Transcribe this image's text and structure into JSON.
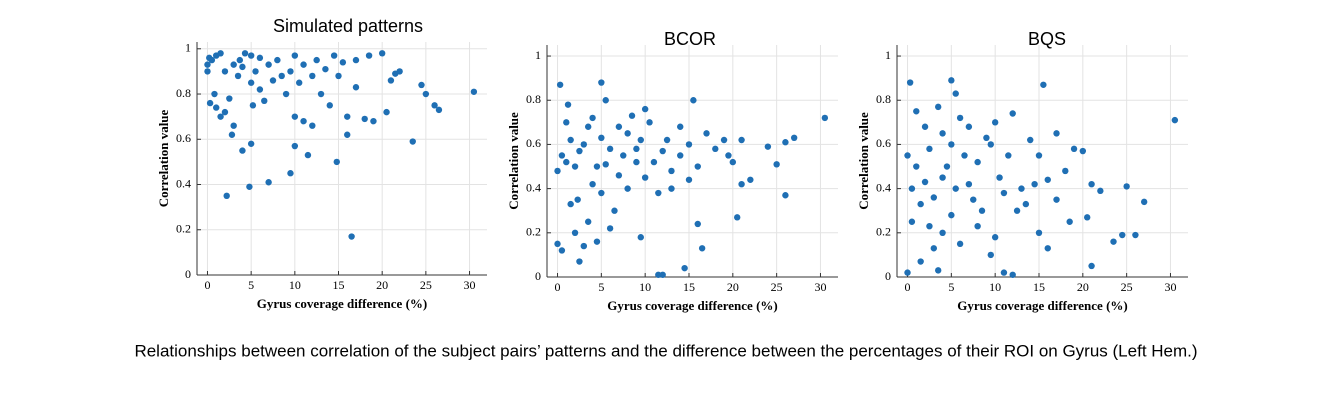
{
  "chart_data": [
    {
      "type": "scatter",
      "title": "Simulated patterns",
      "xlabel": "Gyrus coverage difference (%)",
      "ylabel": "Correlation value",
      "color": "#1f6fb4",
      "grid": true,
      "xlim": [
        -1.2,
        32
      ],
      "ylim": [
        0,
        1.03
      ],
      "xticks": [
        0,
        5,
        10,
        15,
        20,
        25,
        30
      ],
      "yticks": [
        0,
        0.2,
        0.4,
        0.6,
        0.8,
        1
      ],
      "x": [
        0,
        0,
        0.2,
        0.5,
        0.3,
        0.8,
        1,
        1,
        1.5,
        1.5,
        2,
        2,
        2.2,
        2.5,
        2.8,
        3,
        3,
        3.5,
        3.7,
        4,
        4,
        4.3,
        4.8,
        5,
        5,
        5,
        5.2,
        5.5,
        6,
        6,
        6.5,
        7,
        7,
        7.5,
        8,
        8.5,
        9,
        9.5,
        9.5,
        10,
        10,
        10,
        10.5,
        11,
        11,
        11.5,
        12,
        12,
        12.5,
        13,
        13.5,
        14,
        14.5,
        14.8,
        15,
        15.5,
        16,
        16,
        16.5,
        17,
        17,
        18,
        18.5,
        19,
        20,
        20.5,
        21,
        21.5,
        22,
        23.5,
        24.5,
        25,
        26,
        26.5,
        30.5
      ],
      "values": [
        0.93,
        0.9,
        0.96,
        0.95,
        0.76,
        0.8,
        0.74,
        0.97,
        0.98,
        0.7,
        0.72,
        0.9,
        0.35,
        0.78,
        0.62,
        0.66,
        0.93,
        0.88,
        0.95,
        0.55,
        0.92,
        0.98,
        0.39,
        0.58,
        0.85,
        0.97,
        0.75,
        0.9,
        0.96,
        0.82,
        0.77,
        0.41,
        0.93,
        0.86,
        0.95,
        0.88,
        0.8,
        0.45,
        0.9,
        0.57,
        0.7,
        0.97,
        0.85,
        0.93,
        0.68,
        0.53,
        0.66,
        0.88,
        0.95,
        0.8,
        0.91,
        0.75,
        0.97,
        0.5,
        0.88,
        0.94,
        0.7,
        0.62,
        0.17,
        0.83,
        0.95,
        0.69,
        0.97,
        0.68,
        0.98,
        0.72,
        0.86,
        0.89,
        0.9,
        0.59,
        0.84,
        0.8,
        0.75,
        0.73,
        0.81
      ]
    },
    {
      "type": "scatter",
      "title": "BCOR",
      "xlabel": "Gyrus coverage difference (%)",
      "ylabel": "Correlation value",
      "color": "#1f6fb4",
      "grid": true,
      "xlim": [
        -1.2,
        32
      ],
      "ylim": [
        0,
        1.05
      ],
      "xticks": [
        0,
        5,
        10,
        15,
        20,
        25,
        30
      ],
      "yticks": [
        0,
        0.2,
        0.4,
        0.6,
        0.8,
        1
      ],
      "x": [
        0,
        0,
        0.3,
        0.5,
        0.5,
        1,
        1,
        1.2,
        1.5,
        1.5,
        2,
        2,
        2.3,
        2.5,
        2.5,
        3,
        3,
        3.5,
        3.5,
        4,
        4,
        4.5,
        4.5,
        5,
        5,
        5,
        5.5,
        5.5,
        6,
        6,
        6.5,
        7,
        7,
        7.5,
        8,
        8,
        8.5,
        9,
        9,
        9.5,
        9.5,
        10,
        10,
        10.5,
        11,
        11.5,
        11.5,
        12,
        12,
        12.5,
        13,
        13,
        14,
        14,
        14.5,
        15,
        15,
        15.5,
        16,
        16,
        16.5,
        17,
        18,
        19,
        19.5,
        20,
        20.5,
        21,
        21,
        22,
        24,
        25,
        26,
        26,
        27,
        30.5
      ],
      "values": [
        0.48,
        0.15,
        0.87,
        0.55,
        0.12,
        0.52,
        0.7,
        0.78,
        0.33,
        0.62,
        0.2,
        0.5,
        0.35,
        0.07,
        0.57,
        0.14,
        0.6,
        0.25,
        0.68,
        0.72,
        0.42,
        0.16,
        0.5,
        0.88,
        0.63,
        0.38,
        0.8,
        0.51,
        0.22,
        0.58,
        0.3,
        0.68,
        0.46,
        0.55,
        0.65,
        0.4,
        0.73,
        0.58,
        0.52,
        0.18,
        0.62,
        0.76,
        0.45,
        0.7,
        0.52,
        0.38,
        0.01,
        0.01,
        0.57,
        0.62,
        0.48,
        0.4,
        0.55,
        0.68,
        0.04,
        0.6,
        0.44,
        0.8,
        0.24,
        0.5,
        0.13,
        0.65,
        0.58,
        0.62,
        0.55,
        0.52,
        0.27,
        0.62,
        0.42,
        0.44,
        0.59,
        0.51,
        0.37,
        0.61,
        0.63,
        0.72
      ]
    },
    {
      "type": "scatter",
      "title": "BQS",
      "xlabel": "Gyrus coverage difference (%)",
      "ylabel": "Correlation value",
      "color": "#1f6fb4",
      "grid": true,
      "xlim": [
        -1.2,
        32
      ],
      "ylim": [
        0,
        1.05
      ],
      "xticks": [
        0,
        5,
        10,
        15,
        20,
        25,
        30
      ],
      "yticks": [
        0,
        0.2,
        0.4,
        0.6,
        0.8,
        1
      ],
      "x": [
        0,
        0,
        0.3,
        0.5,
        0.5,
        1,
        1,
        1.5,
        1.5,
        2,
        2,
        2.5,
        2.5,
        3,
        3,
        3.5,
        3.5,
        4,
        4,
        4,
        4.5,
        5,
        5,
        5,
        5.5,
        5.5,
        6,
        6,
        6.5,
        7,
        7,
        7.5,
        8,
        8,
        8.5,
        9,
        9.5,
        9.5,
        10,
        10,
        10.5,
        11,
        11,
        11.5,
        12,
        12,
        12.5,
        13,
        13.5,
        14,
        14.5,
        15,
        15,
        15.5,
        16,
        16,
        17,
        17,
        18,
        18.5,
        19,
        20,
        20.5,
        21,
        21,
        22,
        23.5,
        24.5,
        25,
        26,
        27,
        30.5
      ],
      "values": [
        0.02,
        0.55,
        0.88,
        0.4,
        0.25,
        0.5,
        0.75,
        0.07,
        0.33,
        0.43,
        0.68,
        0.23,
        0.58,
        0.13,
        0.36,
        0.77,
        0.03,
        0.2,
        0.45,
        0.65,
        0.5,
        0.89,
        0.28,
        0.6,
        0.83,
        0.4,
        0.72,
        0.15,
        0.55,
        0.42,
        0.68,
        0.35,
        0.23,
        0.52,
        0.3,
        0.63,
        0.1,
        0.6,
        0.7,
        0.18,
        0.45,
        0.38,
        0.02,
        0.55,
        0.74,
        0.01,
        0.3,
        0.4,
        0.33,
        0.62,
        0.42,
        0.55,
        0.2,
        0.87,
        0.44,
        0.13,
        0.65,
        0.35,
        0.48,
        0.25,
        0.58,
        0.57,
        0.27,
        0.05,
        0.42,
        0.39,
        0.16,
        0.19,
        0.41,
        0.19,
        0.34,
        0.71
      ]
    }
  ],
  "caption": "Relationships between correlation of the subject pairs’ patterns and the difference between the percentages of their ROI on Gyrus (Left Hem.)"
}
